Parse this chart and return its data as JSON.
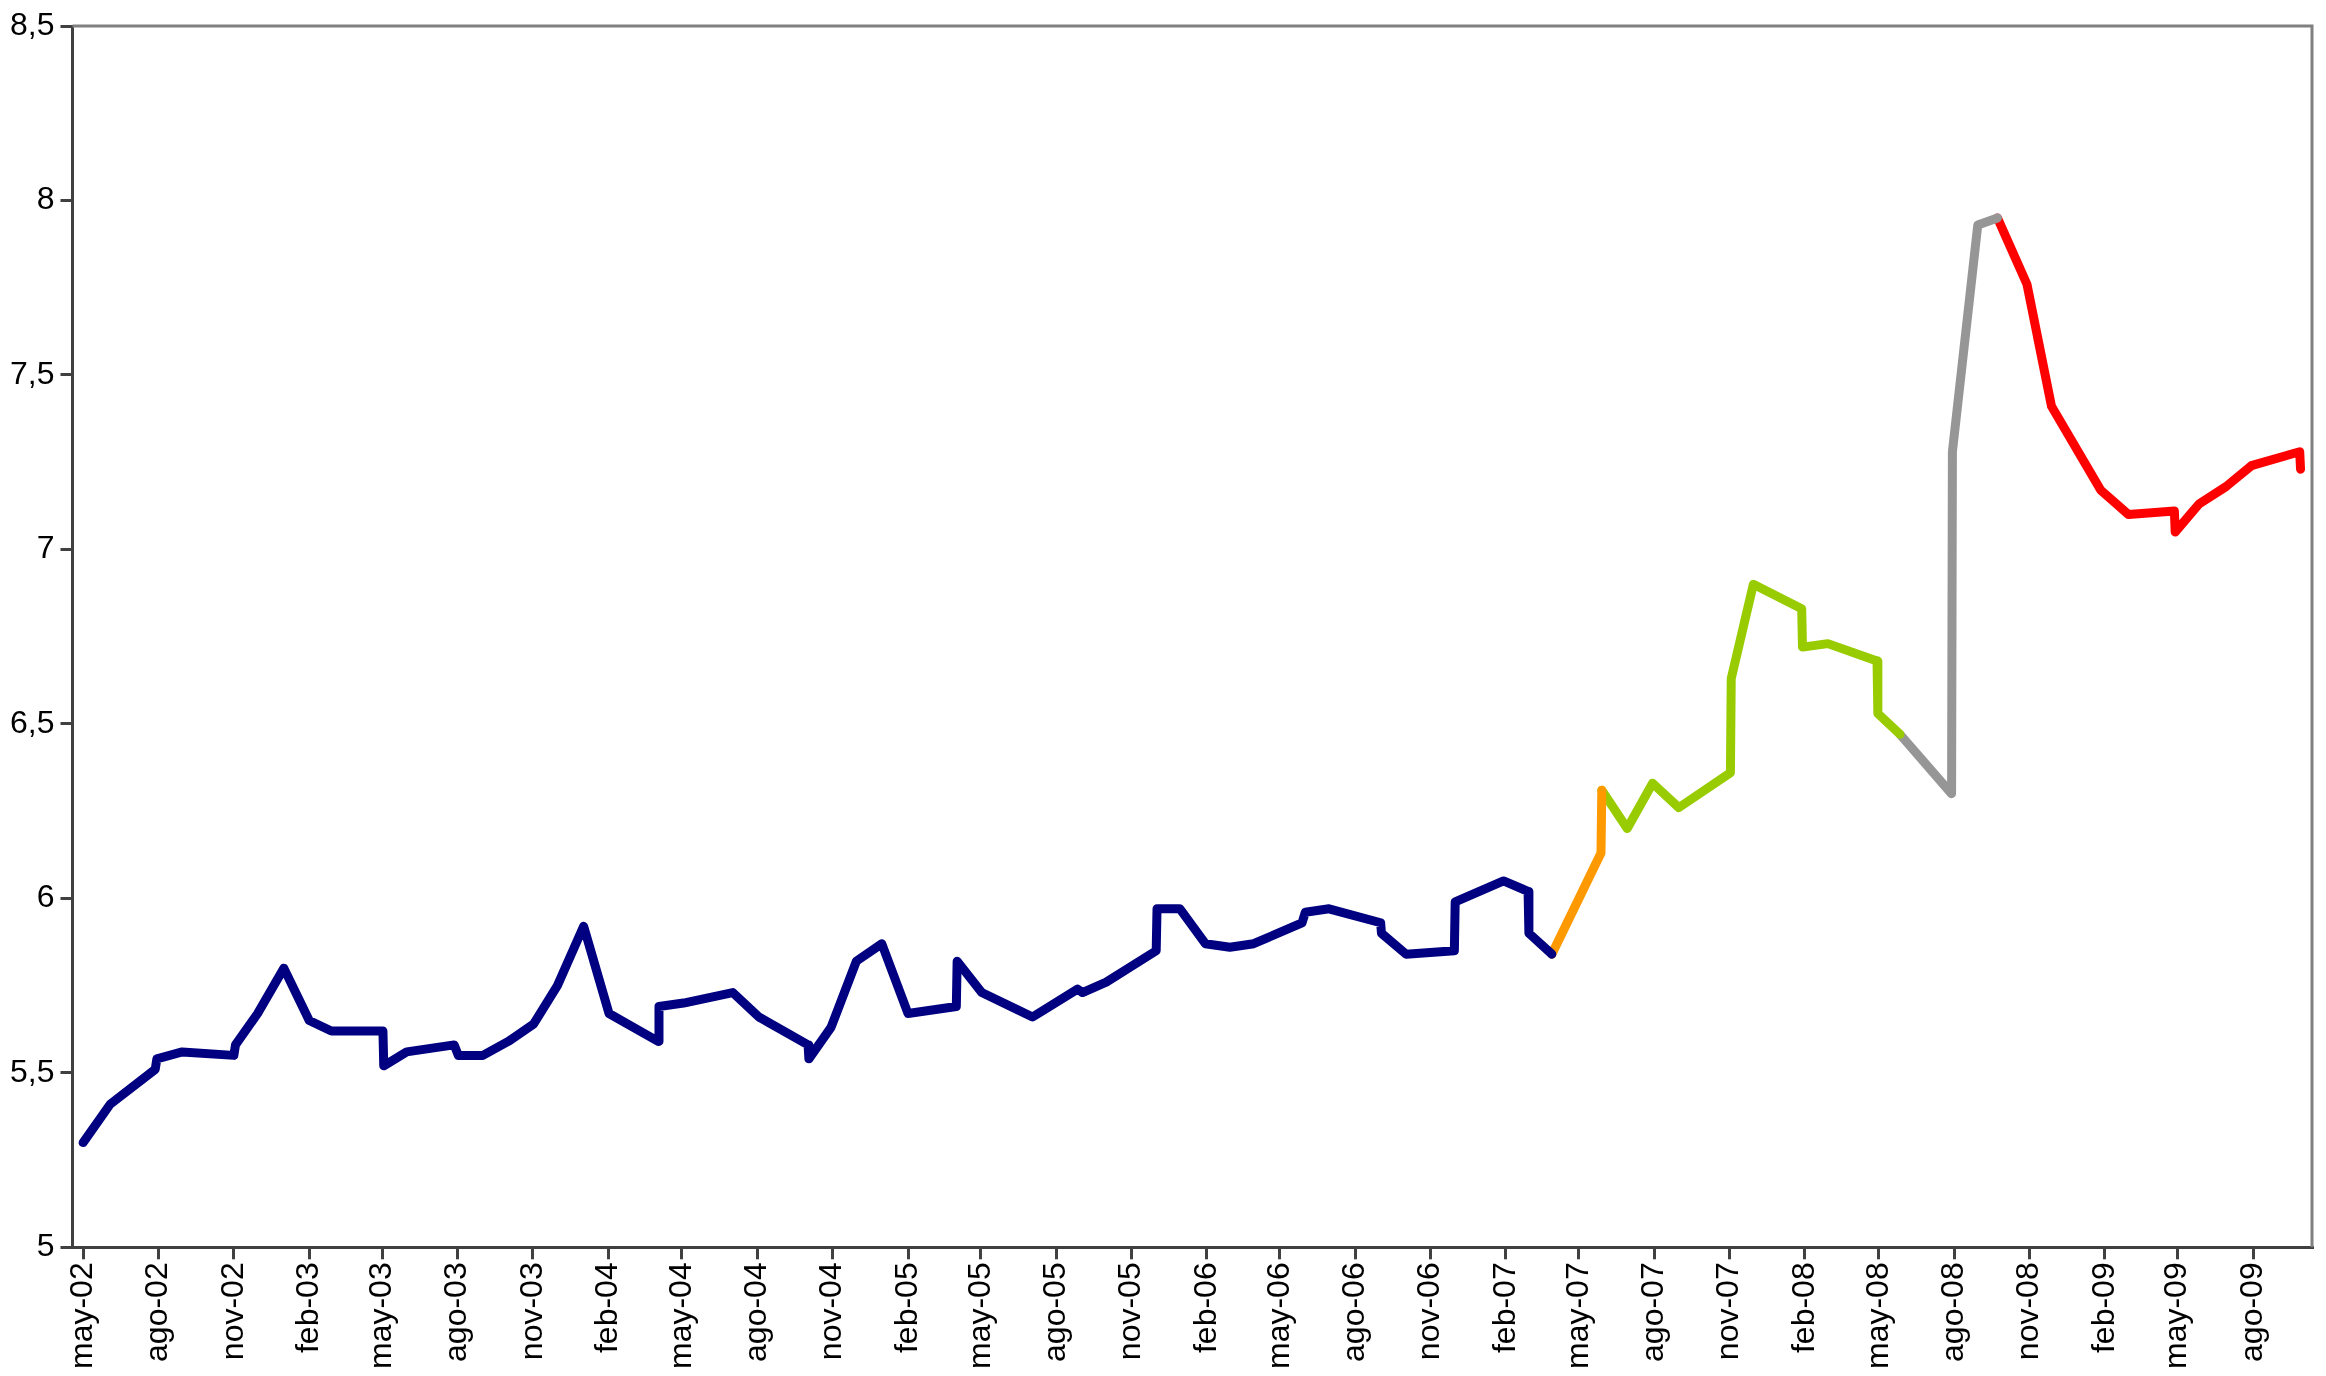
{
  "chart_data": {
    "type": "line",
    "xlim": [
      "2002-04-18",
      "2009-10-12"
    ],
    "xticks": [
      {
        "value": "2002-05-01",
        "label": "may-02"
      },
      {
        "value": "2002-08-01",
        "label": "ago-02"
      },
      {
        "value": "2002-11-01",
        "label": "nov-02"
      },
      {
        "value": "2003-02-01",
        "label": "feb-03"
      },
      {
        "value": "2003-05-01",
        "label": "may-03"
      },
      {
        "value": "2003-08-01",
        "label": "ago-03"
      },
      {
        "value": "2003-11-01",
        "label": "nov-03"
      },
      {
        "value": "2004-02-01",
        "label": "feb-04"
      },
      {
        "value": "2004-05-01",
        "label": "may-04"
      },
      {
        "value": "2004-08-01",
        "label": "ago-04"
      },
      {
        "value": "2004-11-01",
        "label": "nov-04"
      },
      {
        "value": "2005-02-01",
        "label": "feb-05"
      },
      {
        "value": "2005-05-01",
        "label": "may-05"
      },
      {
        "value": "2005-08-01",
        "label": "ago-05"
      },
      {
        "value": "2005-11-01",
        "label": "nov-05"
      },
      {
        "value": "2006-02-01",
        "label": "feb-06"
      },
      {
        "value": "2006-05-01",
        "label": "may-06"
      },
      {
        "value": "2006-08-01",
        "label": "ago-06"
      },
      {
        "value": "2006-11-01",
        "label": "nov-06"
      },
      {
        "value": "2007-02-01",
        "label": "feb-07"
      },
      {
        "value": "2007-05-01",
        "label": "may-07"
      },
      {
        "value": "2007-08-01",
        "label": "ago-07"
      },
      {
        "value": "2007-11-01",
        "label": "nov-07"
      },
      {
        "value": "2008-02-01",
        "label": "feb-08"
      },
      {
        "value": "2008-05-01",
        "label": "may-08"
      },
      {
        "value": "2008-08-01",
        "label": "ago-08"
      },
      {
        "value": "2008-11-01",
        "label": "nov-08"
      },
      {
        "value": "2009-02-01",
        "label": "feb-09"
      },
      {
        "value": "2009-05-01",
        "label": "may-09"
      },
      {
        "value": "2009-08-01",
        "label": "ago-09"
      }
    ],
    "ylim": [
      5,
      8.5
    ],
    "yticks": [
      5,
      {
        "value": 5.5,
        "label": "5,5"
      },
      6,
      {
        "value": 6.5,
        "label": "6,5"
      },
      7,
      {
        "value": 7.5,
        "label": "7,5"
      },
      8,
      {
        "value": 8.5,
        "label": "8,5"
      }
    ],
    "grid": false,
    "legend": false,
    "marker": "none",
    "line_style": "solid",
    "series": [
      {
        "color": "#000080",
        "x": [
          "2002-05-01",
          "2002-06-03",
          "2002-07-28",
          "2002-07-30",
          "2002-08-30",
          "2002-11-01",
          "2002-11-03",
          "2002-11-30",
          "2003-01-01",
          "2003-02-01",
          "2003-02-28",
          "2003-05-02",
          "2003-05-03",
          "2003-05-31",
          "2003-07-28",
          "2003-08-02",
          "2003-09-01",
          "2003-10-02",
          "2003-11-02",
          "2003-12-01",
          "2004-01-02",
          "2004-02-02",
          "2004-04-02",
          "2004-04-03",
          "2004-05-03",
          "2004-07-02",
          "2004-08-03",
          "2004-10-02",
          "2004-10-03",
          "2004-10-30",
          "2004-11-30",
          "2004-12-31",
          "2005-02-01",
          "2005-04-01",
          "2005-04-02",
          "2005-05-02",
          "2005-07-03",
          "2005-08-27",
          "2005-09-02",
          "2005-10-01",
          "2005-12-01",
          "2005-12-02",
          "2005-12-30",
          "2006-01-30",
          "2006-03-01",
          "2006-03-30",
          "2006-05-28",
          "2006-06-01",
          "2006-06-30",
          "2006-09-01",
          "2006-09-02",
          "2006-10-02",
          "2006-11-30",
          "2006-12-01",
          "2007-01-29",
          "2007-02-28",
          "2007-03-01",
          "2007-03-29"
        ],
        "values": [
          5.3,
          5.41,
          5.51,
          5.54,
          5.56,
          5.55,
          5.58,
          5.67,
          5.8,
          5.65,
          5.62,
          5.62,
          5.52,
          5.56,
          5.58,
          5.55,
          5.55,
          5.59,
          5.64,
          5.75,
          5.92,
          5.67,
          5.59,
          5.69,
          5.7,
          5.73,
          5.66,
          5.58,
          5.54,
          5.63,
          5.82,
          5.87,
          5.67,
          5.69,
          5.82,
          5.73,
          5.66,
          5.74,
          5.73,
          5.76,
          5.85,
          5.97,
          5.97,
          5.87,
          5.86,
          5.87,
          5.93,
          5.96,
          5.97,
          5.93,
          5.9,
          5.84,
          5.85,
          5.99,
          6.05,
          6.02,
          5.9,
          5.84
        ]
      },
      {
        "color": "#ff9900",
        "x": [
          "2007-03-29",
          "2007-05-28",
          "2007-05-29"
        ],
        "values": [
          5.84,
          6.13,
          6.31
        ]
      },
      {
        "color": "#99cc00",
        "x": [
          "2007-05-29",
          "2007-06-29",
          "2007-07-30",
          "2007-08-31",
          "2007-11-02",
          "2007-11-03",
          "2007-11-30",
          "2008-01-28",
          "2008-01-29",
          "2008-02-29",
          "2008-04-29",
          "2008-04-30",
          "2008-05-27"
        ],
        "values": [
          6.31,
          6.2,
          6.33,
          6.26,
          6.36,
          6.63,
          6.9,
          6.83,
          6.72,
          6.73,
          6.68,
          6.53,
          6.47
        ]
      },
      {
        "color": "#969696",
        "x": [
          "2008-05-27",
          "2008-07-29",
          "2008-07-30",
          "2008-08-30",
          "2008-09-23"
        ],
        "values": [
          6.47,
          6.3,
          7.28,
          7.93,
          7.95
        ]
      },
      {
        "color": "#ff0000",
        "x": [
          "2008-09-23",
          "2008-10-29",
          "2008-11-28",
          "2009-01-27",
          "2009-03-02",
          "2009-04-27",
          "2009-04-28",
          "2009-05-27",
          "2009-06-29",
          "2009-07-30",
          "2009-09-27",
          "2009-09-28"
        ],
        "values": [
          7.95,
          7.76,
          7.41,
          7.17,
          7.1,
          7.11,
          7.05,
          7.13,
          7.18,
          7.24,
          7.28,
          7.23
        ]
      }
    ]
  }
}
